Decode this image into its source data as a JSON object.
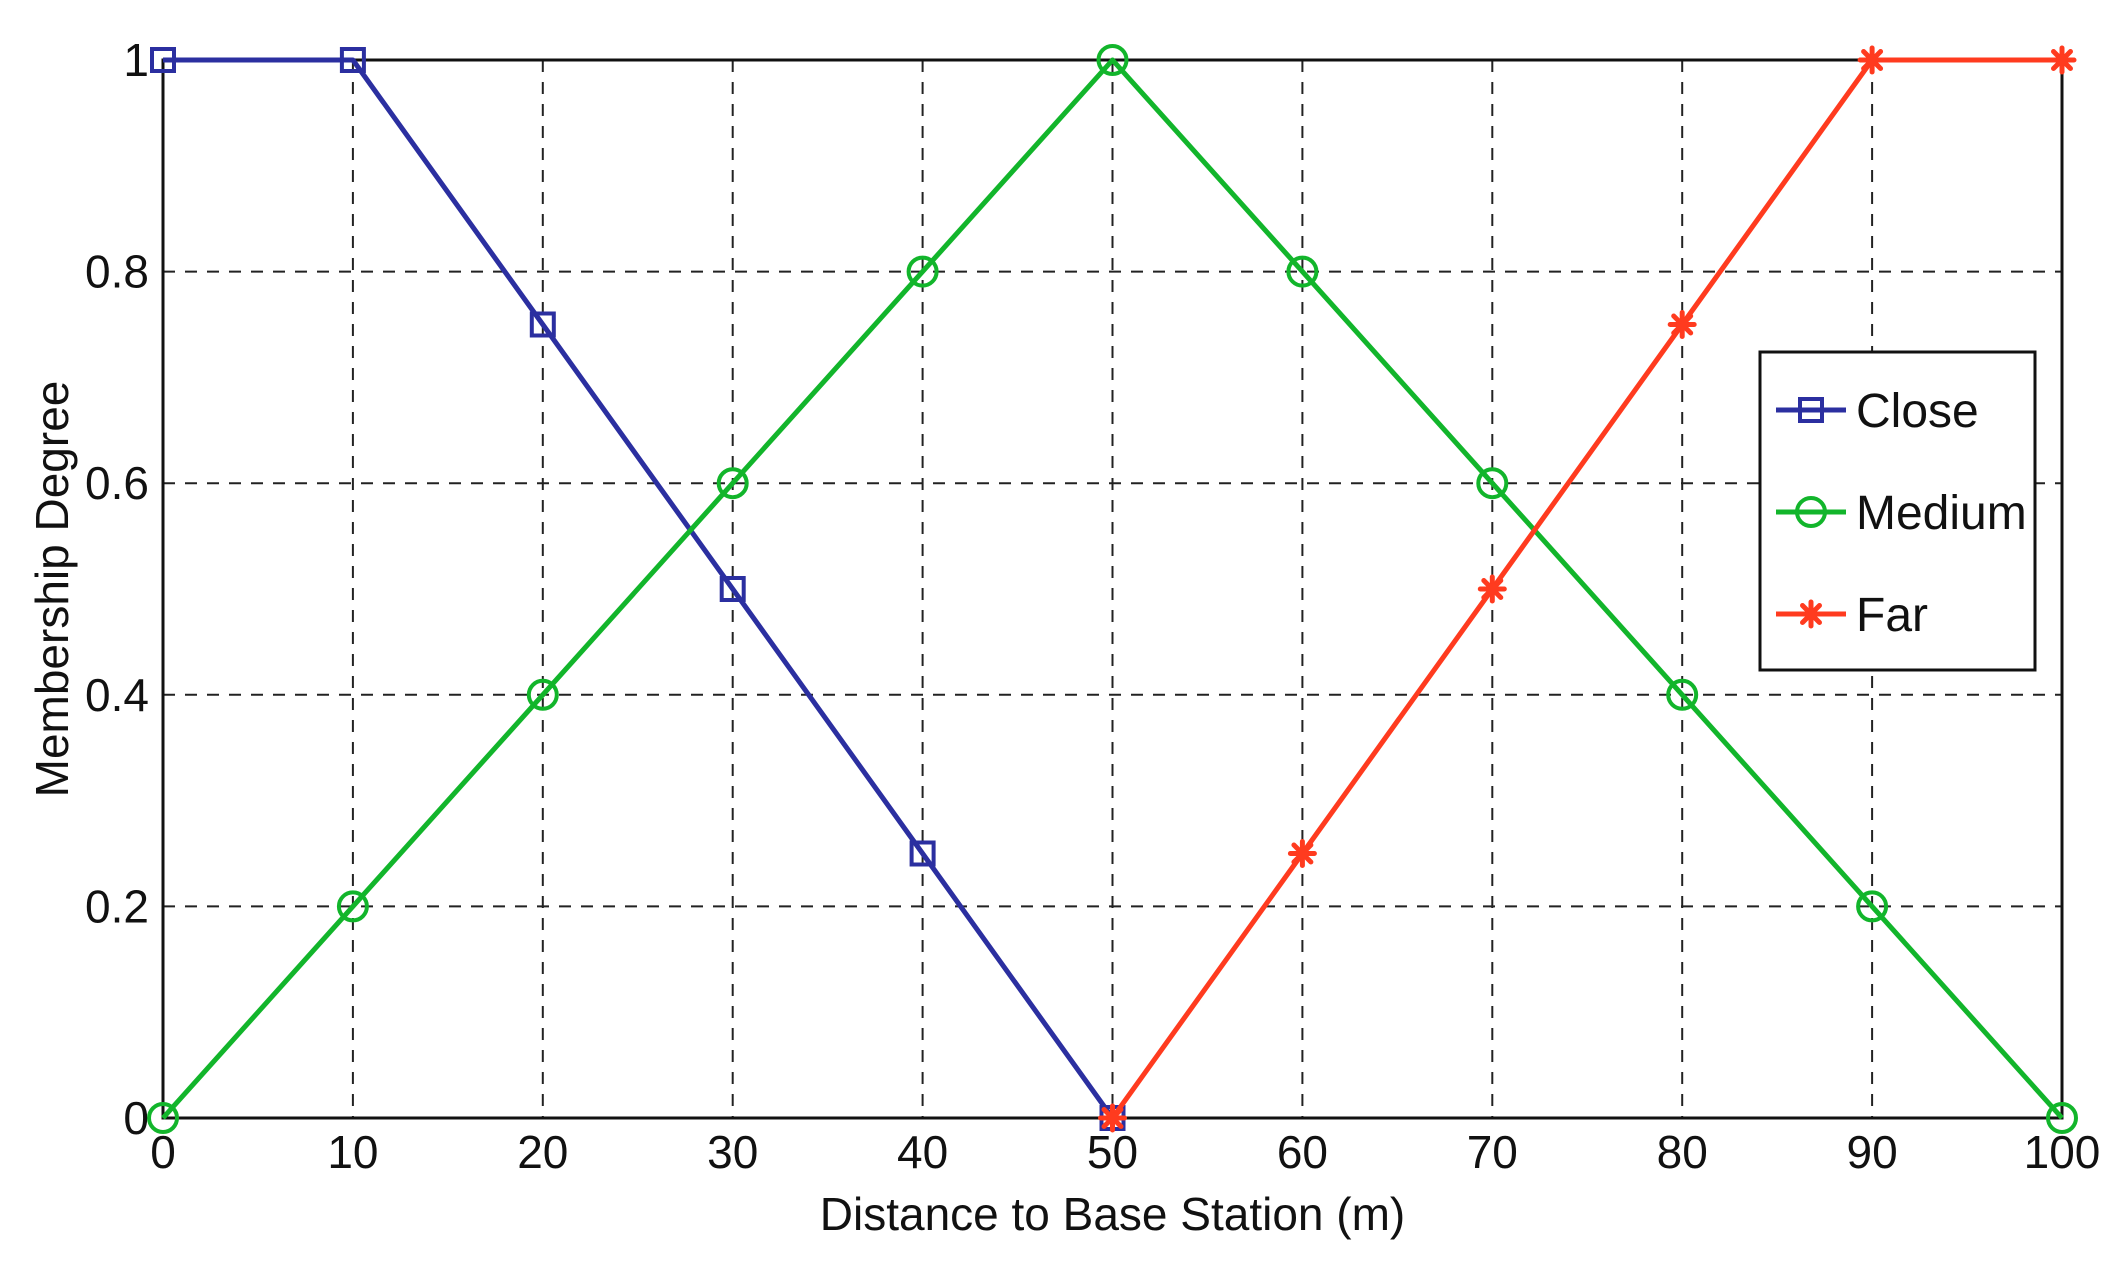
{
  "chart_data": {
    "type": "line",
    "title": "",
    "xlabel": "Distance to Base Station (m)",
    "ylabel": "Membership Degree",
    "xlim": [
      0,
      100
    ],
    "ylim": [
      0,
      1
    ],
    "x_ticks": [
      0,
      10,
      20,
      30,
      40,
      50,
      60,
      70,
      80,
      90,
      100
    ],
    "x_tick_labels": [
      "0",
      "10",
      "20",
      "30",
      "40",
      "50",
      "60",
      "70",
      "80",
      "90",
      "100"
    ],
    "y_ticks": [
      0,
      0.2,
      0.4,
      0.6,
      0.8,
      1
    ],
    "y_tick_labels": [
      "0",
      "0.2",
      "0.4",
      "0.6",
      "0.8",
      "1"
    ],
    "grid": true,
    "legend_position": "right",
    "series": [
      {
        "name": "Close",
        "color": "#2b2fa0",
        "marker": "square",
        "x": [
          0,
          10,
          20,
          30,
          40,
          50
        ],
        "y": [
          1,
          1,
          0.75,
          0.5,
          0.25,
          0
        ]
      },
      {
        "name": "Medium",
        "color": "#12b52b",
        "marker": "circle",
        "x": [
          0,
          10,
          20,
          30,
          40,
          50,
          60,
          70,
          80,
          90,
          100
        ],
        "y": [
          0,
          0.2,
          0.4,
          0.6,
          0.8,
          1,
          0.8,
          0.6,
          0.4,
          0.2,
          0
        ]
      },
      {
        "name": "Far",
        "color": "#ff3b1f",
        "marker": "star",
        "x": [
          50,
          60,
          70,
          80,
          90,
          100
        ],
        "y": [
          0,
          0.25,
          0.5,
          0.75,
          1,
          1
        ]
      }
    ]
  }
}
